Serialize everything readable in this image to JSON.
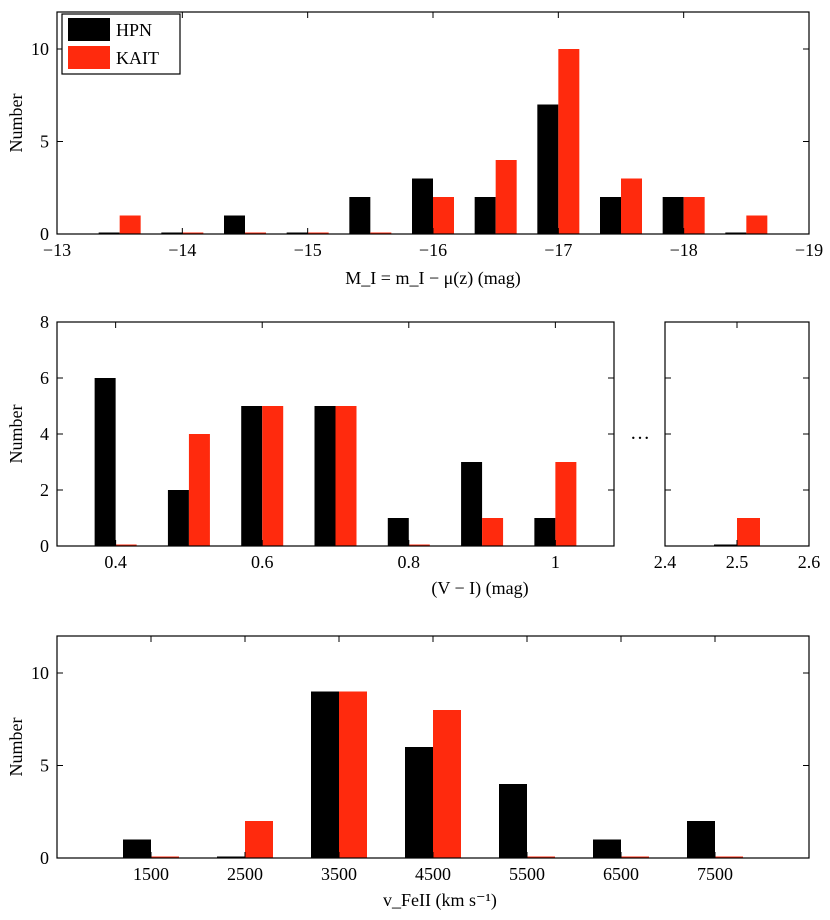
{
  "colors": {
    "hpn": "#000000",
    "kait": "#ff2a0d"
  },
  "legend": {
    "hpn": "HPN",
    "kait": "KAIT"
  },
  "chart_data": [
    {
      "type": "bar",
      "title": "",
      "xlabel": "M_I = m_I − μ(z) (mag)",
      "ylabel": "Number",
      "xlim": [
        -13,
        -19
      ],
      "ylim": [
        0,
        12
      ],
      "xticks": [
        -13,
        -14,
        -15,
        -16,
        -17,
        -18,
        -19
      ],
      "xtick_labels": [
        "−13",
        "−14",
        "−15",
        "−16",
        "−17",
        "−18",
        "−19"
      ],
      "yticks": [
        0,
        5,
        10
      ],
      "yticks_right": [
        0,
        5,
        10
      ],
      "legend_position": "top-left",
      "categories": [
        -13.5,
        -14.0,
        -14.5,
        -15.0,
        -15.5,
        -16.0,
        -16.5,
        -17.0,
        -17.5,
        -18.0,
        -18.5
      ],
      "series": [
        {
          "name": "HPN",
          "values": [
            0,
            0,
            1,
            0,
            2,
            3,
            2,
            7,
            2,
            2,
            0
          ]
        },
        {
          "name": "KAIT",
          "values": [
            1,
            0,
            0,
            0,
            0,
            2,
            4,
            10,
            3,
            2,
            1
          ]
        }
      ]
    },
    {
      "type": "bar",
      "title": "",
      "xlabel": "(V − I) (mag)",
      "ylabel": "Number",
      "xlim": [
        0.32,
        1.08
      ],
      "ylim": [
        0,
        8
      ],
      "xticks": [
        0.4,
        0.6,
        0.8,
        1.0
      ],
      "xtick_labels": [
        "0.4",
        "0.6",
        "0.8",
        "1"
      ],
      "yticks": [
        0,
        2,
        4,
        6,
        8
      ],
      "yticks_right": [
        2,
        4,
        6
      ],
      "categories": [
        0.4,
        0.5,
        0.6,
        0.7,
        0.8,
        0.9,
        1.0
      ],
      "series": [
        {
          "name": "HPN",
          "values": [
            6,
            2,
            5,
            5,
            1,
            3,
            1
          ]
        },
        {
          "name": "KAIT",
          "values": [
            0,
            4,
            5,
            5,
            0,
            1,
            3
          ]
        }
      ],
      "break_symbol": "…",
      "inset": {
        "xlim": [
          2.4,
          2.6
        ],
        "xticks": [
          2.4,
          2.5,
          2.6
        ],
        "xtick_labels": [
          "2.4",
          "2.5",
          "2.6"
        ],
        "yticks": [
          2,
          4,
          6
        ],
        "categories": [
          2.5
        ],
        "series": [
          {
            "name": "HPN",
            "values": [
              0
            ]
          },
          {
            "name": "KAIT",
            "values": [
              1
            ]
          }
        ]
      }
    },
    {
      "type": "bar",
      "title": "",
      "xlabel": "v_FeII (km s⁻¹)",
      "ylabel": "Number",
      "xlim": [
        500,
        8500
      ],
      "ylim": [
        0,
        12
      ],
      "xticks": [
        1500,
        2500,
        3500,
        4500,
        5500,
        6500,
        7500
      ],
      "xtick_labels": [
        "1500",
        "2500",
        "3500",
        "4500",
        "5500",
        "6500",
        "7500"
      ],
      "yticks": [
        0,
        5,
        10
      ],
      "yticks_right": [
        0,
        5,
        10
      ],
      "categories": [
        1500,
        2500,
        3500,
        4500,
        5500,
        6500,
        7500
      ],
      "series": [
        {
          "name": "HPN",
          "values": [
            1,
            0,
            9,
            6,
            4,
            1,
            2
          ]
        },
        {
          "name": "KAIT",
          "values": [
            0,
            2,
            9,
            8,
            0,
            0,
            0
          ]
        }
      ]
    }
  ]
}
